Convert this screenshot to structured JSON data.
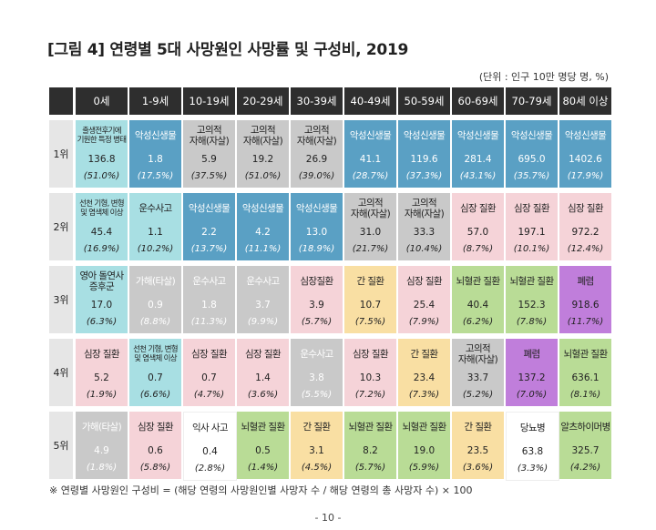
{
  "title": "[그림 4] 연령별 5대 사망원인 사망률 및 구성비, 2019",
  "unit": "(단위 : 인구 10만 명당 명, %)",
  "columns": [
    "0세",
    "1-9세",
    "10-19세",
    "20-29세",
    "30-39세",
    "40-49세",
    "50-59세",
    "60-69세",
    "70-79세",
    "80세 이상"
  ],
  "ranks": [
    "1위",
    "2위",
    "3위",
    "4위",
    "5위"
  ],
  "colors": {
    "neoplasm": "#5aa0c4",
    "suicide": "#c9c9c9",
    "heart": "#f5d3d8",
    "cerebro": "#b9dc96",
    "liver": "#f9dfa3",
    "pneumonia": "#c07edb",
    "accident": "#a8dfe3",
    "perinatal": "#a8dfe3",
    "white": "#ffffff",
    "header": "#2e2e2e"
  },
  "rows": [
    [
      {
        "cause": "출생전후기에\n기원한 특정 병태",
        "value": "136.8",
        "pct": "(51.0%)",
        "color": "#a8dfe3",
        "small": true
      },
      {
        "cause": "악성신생물",
        "value": "1.8",
        "pct": "(17.5%)",
        "color": "#5aa0c4",
        "light": true
      },
      {
        "cause": "고의적\n자해(자살)",
        "value": "5.9",
        "pct": "(37.5%)",
        "color": "#c9c9c9"
      },
      {
        "cause": "고의적\n자해(자살)",
        "value": "19.2",
        "pct": "(51.0%)",
        "color": "#c9c9c9"
      },
      {
        "cause": "고의적\n자해(자살)",
        "value": "26.9",
        "pct": "(39.0%)",
        "color": "#c9c9c9"
      },
      {
        "cause": "악성신생물",
        "value": "41.1",
        "pct": "(28.7%)",
        "color": "#5aa0c4",
        "light": true
      },
      {
        "cause": "악성신생물",
        "value": "119.6",
        "pct": "(37.3%)",
        "color": "#5aa0c4",
        "light": true
      },
      {
        "cause": "악성신생물",
        "value": "281.4",
        "pct": "(43.1%)",
        "color": "#5aa0c4",
        "light": true
      },
      {
        "cause": "악성신생물",
        "value": "695.0",
        "pct": "(35.7%)",
        "color": "#5aa0c4",
        "light": true
      },
      {
        "cause": "악성신생물",
        "value": "1402.6",
        "pct": "(17.9%)",
        "color": "#5aa0c4",
        "light": true
      }
    ],
    [
      {
        "cause": "선천 기형, 변형\n및 염색체 이상",
        "value": "45.4",
        "pct": "(16.9%)",
        "color": "#a8dfe3",
        "small": true
      },
      {
        "cause": "운수사고",
        "value": "1.1",
        "pct": "(10.2%)",
        "color": "#a8dfe3"
      },
      {
        "cause": "악성신생물",
        "value": "2.2",
        "pct": "(13.7%)",
        "color": "#5aa0c4",
        "light": true
      },
      {
        "cause": "악성신생물",
        "value": "4.2",
        "pct": "(11.1%)",
        "color": "#5aa0c4",
        "light": true
      },
      {
        "cause": "악성신생물",
        "value": "13.0",
        "pct": "(18.9%)",
        "color": "#5aa0c4",
        "light": true
      },
      {
        "cause": "고의적\n자해(자살)",
        "value": "31.0",
        "pct": "(21.7%)",
        "color": "#c9c9c9"
      },
      {
        "cause": "고의적\n자해(자살)",
        "value": "33.3",
        "pct": "(10.4%)",
        "color": "#c9c9c9"
      },
      {
        "cause": "심장 질환",
        "value": "57.0",
        "pct": "(8.7%)",
        "color": "#f5d3d8"
      },
      {
        "cause": "심장 질환",
        "value": "197.1",
        "pct": "(10.1%)",
        "color": "#f5d3d8"
      },
      {
        "cause": "심장 질환",
        "value": "972.2",
        "pct": "(12.4%)",
        "color": "#f5d3d8"
      }
    ],
    [
      {
        "cause": "영아 돌연사\n증후군",
        "value": "17.0",
        "pct": "(6.3%)",
        "color": "#a8dfe3"
      },
      {
        "cause": "가해(타살)",
        "value": "0.9",
        "pct": "(8.8%)",
        "color": "#c9c9c9",
        "light": true
      },
      {
        "cause": "운수사고",
        "value": "1.8",
        "pct": "(11.3%)",
        "color": "#c9c9c9",
        "light": true
      },
      {
        "cause": "운수사고",
        "value": "3.7",
        "pct": "(9.9%)",
        "color": "#c9c9c9",
        "light": true
      },
      {
        "cause": "심장질환",
        "value": "3.9",
        "pct": "(5.7%)",
        "color": "#f5d3d8"
      },
      {
        "cause": "간 질환",
        "value": "10.7",
        "pct": "(7.5%)",
        "color": "#f9dfa3"
      },
      {
        "cause": "심장 질환",
        "value": "25.4",
        "pct": "(7.9%)",
        "color": "#f5d3d8"
      },
      {
        "cause": "뇌혈관 질환",
        "value": "40.4",
        "pct": "(6.2%)",
        "color": "#b9dc96"
      },
      {
        "cause": "뇌혈관 질환",
        "value": "152.3",
        "pct": "(7.8%)",
        "color": "#b9dc96"
      },
      {
        "cause": "폐렴",
        "value": "918.6",
        "pct": "(11.7%)",
        "color": "#c07edb"
      }
    ],
    [
      {
        "cause": "심장 질환",
        "value": "5.2",
        "pct": "(1.9%)",
        "color": "#f5d3d8"
      },
      {
        "cause": "선천 기형, 변형\n및 염색체 이상",
        "value": "0.7",
        "pct": "(6.6%)",
        "color": "#a8dfe3",
        "small": true
      },
      {
        "cause": "심장 질환",
        "value": "0.7",
        "pct": "(4.7%)",
        "color": "#f5d3d8"
      },
      {
        "cause": "심장 질환",
        "value": "1.4",
        "pct": "(3.6%)",
        "color": "#f5d3d8"
      },
      {
        "cause": "운수사고",
        "value": "3.8",
        "pct": "(5.5%)",
        "color": "#c9c9c9",
        "light": true
      },
      {
        "cause": "심장 질환",
        "value": "10.3",
        "pct": "(7.2%)",
        "color": "#f5d3d8"
      },
      {
        "cause": "간 질환",
        "value": "23.4",
        "pct": "(7.3%)",
        "color": "#f9dfa3"
      },
      {
        "cause": "고의적\n자해(자살)",
        "value": "33.7",
        "pct": "(5.2%)",
        "color": "#c9c9c9"
      },
      {
        "cause": "폐렴",
        "value": "137.2",
        "pct": "(7.0%)",
        "color": "#c07edb"
      },
      {
        "cause": "뇌혈관 질환",
        "value": "636.1",
        "pct": "(8.1%)",
        "color": "#b9dc96"
      }
    ],
    [
      {
        "cause": "가해(타살)",
        "value": "4.9",
        "pct": "(1.8%)",
        "color": "#c9c9c9",
        "light": true
      },
      {
        "cause": "심장 질환",
        "value": "0.6",
        "pct": "(5.8%)",
        "color": "#f5d3d8"
      },
      {
        "cause": "익사 사고",
        "value": "0.4",
        "pct": "(2.8%)",
        "color": "#ffffff"
      },
      {
        "cause": "뇌혈관 질환",
        "value": "0.5",
        "pct": "(1.4%)",
        "color": "#b9dc96"
      },
      {
        "cause": "간 질환",
        "value": "3.1",
        "pct": "(4.5%)",
        "color": "#f9dfa3"
      },
      {
        "cause": "뇌혈관 질환",
        "value": "8.2",
        "pct": "(5.7%)",
        "color": "#b9dc96"
      },
      {
        "cause": "뇌혈관 질환",
        "value": "19.0",
        "pct": "(5.9%)",
        "color": "#b9dc96"
      },
      {
        "cause": "간 질환",
        "value": "23.5",
        "pct": "(3.6%)",
        "color": "#f9dfa3"
      },
      {
        "cause": "당뇨병",
        "value": "63.8",
        "pct": "(3.3%)",
        "color": "#ffffff"
      },
      {
        "cause": "알츠하이머병",
        "value": "325.7",
        "pct": "(4.2%)",
        "color": "#b9dc96"
      }
    ]
  ],
  "footnote": "※ 연령별 사망원인 구성비 = (해당 연령의 사망원인별 사망자 수 / 해당 연령의 총 사망자 수) × 100",
  "page_number": "- 10 -"
}
